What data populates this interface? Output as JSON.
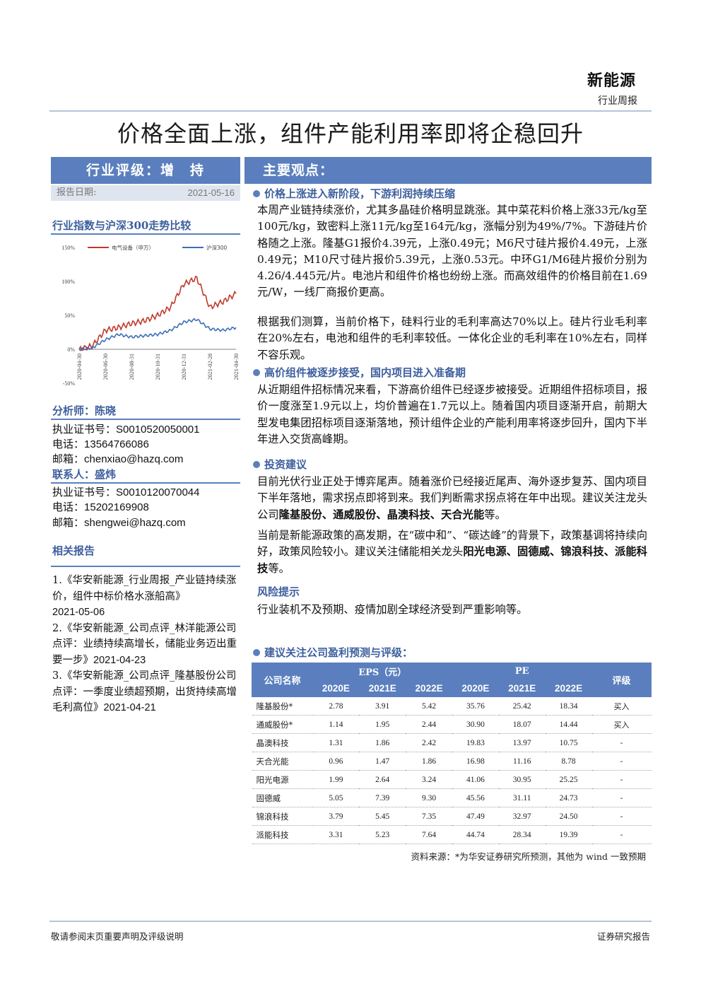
{
  "header": {
    "sector": "新能源",
    "report_type": "行业周报"
  },
  "title": "价格全面上涨，组件产能利用率即将企稳回升",
  "rating": {
    "label": "行业评级：增　持"
  },
  "report_date": {
    "label": "报告日期:",
    "value": "2021-05-16"
  },
  "main_views_label": "主要观点：",
  "chart": {
    "heading": "行业指数与沪深300走势比较"
  },
  "chart_data": {
    "type": "line",
    "title": "",
    "yticks": [
      "150%",
      "100%",
      "50%",
      "0%",
      "-50%"
    ],
    "ylim": [
      -50,
      150
    ],
    "xticks": [
      "2020-04-30",
      "2020-06-30",
      "2020-08-31",
      "2020-10-31",
      "2020-12-31",
      "2021-02-28",
      "2021-04-30"
    ],
    "x": [
      "2020-04-30",
      "2020-05-31",
      "2020-06-30",
      "2020-07-31",
      "2020-08-31",
      "2020-09-30",
      "2020-10-31",
      "2020-11-30",
      "2020-12-31",
      "2021-01-31",
      "2021-02-28",
      "2021-03-31",
      "2021-04-30"
    ],
    "legend_position": "top",
    "series": [
      {
        "name": "电气设备（申万）",
        "color": "#c0392b",
        "values": [
          0,
          5,
          28,
          32,
          38,
          42,
          50,
          62,
          96,
          105,
          62,
          70,
          82
        ]
      },
      {
        "name": "沪深300",
        "color": "#3d6fb5",
        "values": [
          0,
          2,
          14,
          22,
          18,
          20,
          22,
          28,
          40,
          44,
          30,
          28,
          32
        ]
      }
    ]
  },
  "analyst": {
    "heading": "分析师：陈晓",
    "cert_label": "执业证书号：",
    "cert": "S0010520050001",
    "phone_label": "电话：",
    "phone": "13564766086",
    "email_label": "邮箱：",
    "email": "chenxiao@hazq.com"
  },
  "contact": {
    "heading": "联系人：盛炜",
    "cert_label": "执业证书号：",
    "cert": "S0010120070044",
    "phone_label": "电话：",
    "phone": "15202169908",
    "email_label": "邮箱：",
    "email": "shengwei@hazq.com"
  },
  "related": {
    "heading": "相关报告",
    "items": [
      {
        "text": "1.《华安新能源_行业周报_产业链持续涨价，组件中标价格水涨船高》",
        "date": "2021-05-06"
      },
      {
        "text": "2.《华安新能源_公司点评_林洋能源公司点评：业绩持续高增长，储能业务迈出重要一步》",
        "date": "2021-04-23"
      },
      {
        "text": "3.《华安新能源_公司点评_隆基股份公司点评：一季度业绩超预期，出货持续高增毛利高位》",
        "date": "2021-04-21"
      }
    ]
  },
  "sections": {
    "s1": {
      "heading": "价格上涨进入新阶段，下游利润持续压缩",
      "p1": "本周产业链持续涨价，尤其多晶硅价格明显跳涨。其中菜花料价格上涨33元/kg至100元/kg，致密料上涨11元/kg至164元/kg，涨幅分别为49%/7%。下游硅片价格随之上涨。隆基G1报价4.39元，上涨0.49元；M6尺寸硅片报价4.49元，上涨0.49元；M10尺寸硅片报价5.39元，上涨0.53元。中环G1/M6硅片报价分别为4.26/4.445元/片。电池片和组件价格也纷纷上涨。而高效组件的价格目前在1.69元/W，一线厂商报价更高。",
      "p2": "根据我们测算，当前价格下，硅料行业的毛利率高达70%以上。硅片行业毛利率在20%左右，电池和组件的毛利率较低。一体化企业的毛利率在10%左右，同样不容乐观。"
    },
    "s2": {
      "heading": "高价组件被逐步接受，国内项目进入准备期",
      "p1": "从近期组件招标情况来看，下游高价组件已经逐步被接受。近期组件招标项目，报价一度涨至1.9元以上，均价普遍在1.7元以上。随着国内项目逐渐开启，前期大型发电集团招标项目逐渐落地，预计组件企业的产能利用率将逐步回升，国内下半年进入交货高峰期。"
    },
    "s3": {
      "heading": "投资建议",
      "p1a": "目前光伏行业正处于博弈尾声。随着涨价已经接近尾声、海外逐步复苏、国内项目下半年落地，需求拐点即将到来。我们判断需求拐点将在年中出现。建议关注龙头公司",
      "p1b": "隆基股份、通威股份、晶澳科技、天合光能",
      "p1c": "等。",
      "p2a": "当前是新能源政策的高发期，在“碳中和”、“碳达峰”的背景下，政策基调将持续向好，政策风险较小。建议关注储能相关龙头",
      "p2b": "阳光电源、固德威、锦浪科技、派能科技",
      "p2c": "等。"
    },
    "risk": {
      "heading": "风险提示",
      "text": "行业装机不及预期、疫情加剧全球经济受到严重影响等。"
    },
    "table_heading": "建议关注公司盈利预测与评级："
  },
  "table": {
    "col_company": "公司名称",
    "col_eps": "EPS（元）",
    "col_pe": "PE",
    "col_rating": "评级",
    "years": [
      "2020E",
      "2021E",
      "2022E"
    ],
    "rows": [
      {
        "name": "隆基股份*",
        "eps": [
          "2.78",
          "3.91",
          "5.42"
        ],
        "pe": [
          "35.76",
          "25.42",
          "18.34"
        ],
        "rating": "买入"
      },
      {
        "name": "通威股份*",
        "eps": [
          "1.14",
          "1.95",
          "2.44"
        ],
        "pe": [
          "30.90",
          "18.07",
          "14.44"
        ],
        "rating": "买入"
      },
      {
        "name": "晶澳科技",
        "eps": [
          "1.31",
          "1.86",
          "2.42"
        ],
        "pe": [
          "19.83",
          "13.97",
          "10.75"
        ],
        "rating": "-"
      },
      {
        "name": "天合光能",
        "eps": [
          "0.96",
          "1.47",
          "1.86"
        ],
        "pe": [
          "16.98",
          "11.16",
          "8.78"
        ],
        "rating": "-"
      },
      {
        "name": "阳光电源",
        "eps": [
          "1.99",
          "2.64",
          "3.24"
        ],
        "pe": [
          "41.06",
          "30.95",
          "25.25"
        ],
        "rating": "-"
      },
      {
        "name": "固德威",
        "eps": [
          "5.05",
          "7.39",
          "9.30"
        ],
        "pe": [
          "45.56",
          "31.11",
          "24.73"
        ],
        "rating": "-"
      },
      {
        "name": "锦浪科技",
        "eps": [
          "3.79",
          "5.45",
          "7.35"
        ],
        "pe": [
          "47.49",
          "32.97",
          "24.50"
        ],
        "rating": "-"
      },
      {
        "name": "派能科技",
        "eps": [
          "3.31",
          "5.23",
          "7.64"
        ],
        "pe": [
          "44.74",
          "28.34",
          "19.39"
        ],
        "rating": "-"
      }
    ],
    "source": "资料来源：*为华安证券研究所预测，其他为 wind 一致预期"
  },
  "footer": {
    "left": "敬请参阅末页重要声明及评级说明",
    "right": "证券研究报告"
  }
}
